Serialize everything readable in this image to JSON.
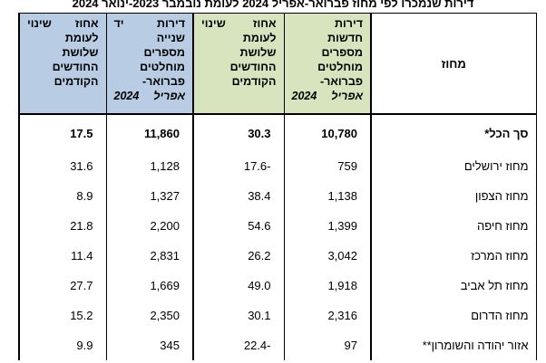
{
  "title": "דירות שנמכרו לפי מחוז פברואר-אפריל 2024 לעומת נובמבר 2023-ינואר 2024",
  "colors": {
    "green_header": "#d7e4bd",
    "blue_header": "#b8cce4"
  },
  "headers": {
    "region": "מחוז",
    "new_apartments": [
      "דירות",
      "חדשות",
      "מספרים",
      "מוחלטים",
      "פברואר-",
      "אפריל 2024"
    ],
    "new_change": [
      "אחוז שינוי",
      "לעומת",
      "שלושת",
      "החודשים",
      "הקודמים"
    ],
    "second_hand": [
      "דירות יד",
      "שנייה",
      "מספרים",
      "מוחלטים",
      "פברואר-",
      "אפריל 2024"
    ],
    "second_change": [
      "אחוז שינוי",
      "לעומת",
      "שלושת",
      "החודשים",
      "הקודמים"
    ]
  },
  "rows": [
    {
      "region": "סך הכל*",
      "new_count": "10,780",
      "new_change": "30.3",
      "second_count": "11,860",
      "second_change": "17.5"
    },
    {
      "region": "מחוז ירושלים",
      "new_count": "759",
      "new_change": "-17.6",
      "second_count": "1,128",
      "second_change": "31.6"
    },
    {
      "region": "מחוז הצפון",
      "new_count": "1,138",
      "new_change": "38.4",
      "second_count": "1,327",
      "second_change": "8.9"
    },
    {
      "region": "מחוז חיפה",
      "new_count": "1,399",
      "new_change": "54.6",
      "second_count": "2,200",
      "second_change": "21.8"
    },
    {
      "region": "מחוז המרכז",
      "new_count": "3,042",
      "new_change": "26.2",
      "second_count": "2,831",
      "second_change": "11.4"
    },
    {
      "region": "מחוז תל אביב",
      "new_count": "1,918",
      "new_change": "49.0",
      "second_count": "1,669",
      "second_change": "27.7"
    },
    {
      "region": "מחוז הדרום",
      "new_count": "2,316",
      "new_change": "30.1",
      "second_count": "2,350",
      "second_change": "15.2"
    },
    {
      "region": "אזור יהודה והשומרון**",
      "new_count": "97",
      "new_change": "-22.4",
      "second_count": "345",
      "second_change": "9.9"
    }
  ]
}
